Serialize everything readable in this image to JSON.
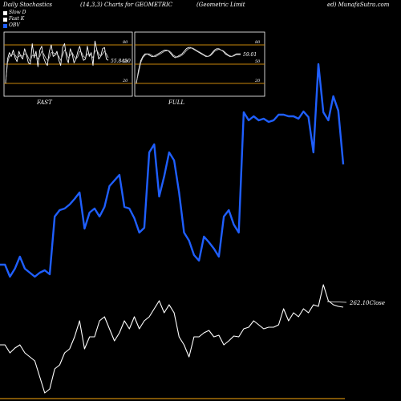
{
  "header": {
    "left": "Daily Stochastics",
    "mid1": "(14,3,3) Charts for GEOMETRIC",
    "mid2": "(Geometric Limit",
    "right": "ed) MunafaSutra.com"
  },
  "legend": [
    {
      "label": "Slow D",
      "color": "#ffffff"
    },
    {
      "label": "Fast K",
      "color": "#ffffff"
    },
    {
      "label": "OBV",
      "color": "#1f5fff"
    }
  ],
  "colors": {
    "obv": "#1f5fff",
    "close": "#ffffff",
    "band": "#c8860a"
  },
  "chart_data": [
    {
      "type": "line",
      "title": "FAST",
      "ylim": [
        0,
        100
      ],
      "levels": [
        80,
        50,
        20
      ],
      "level_labels": [
        "80",
        "50",
        "20"
      ],
      "last_value_label": "55.8450",
      "series": [
        {
          "values": [
            20,
            58,
            68,
            62,
            72,
            60,
            54,
            70,
            62,
            58,
            74,
            64,
            52,
            50,
            82,
            60,
            70,
            46,
            72,
            78,
            60,
            52,
            48,
            70,
            80,
            62,
            64,
            70,
            56,
            48,
            76,
            82,
            60,
            52,
            74,
            66,
            52,
            58,
            70,
            78,
            64,
            56,
            58,
            78,
            62,
            68,
            48,
            86,
            72,
            58,
            62,
            74,
            76,
            58,
            56
          ]
        },
        {
          "values": [
            22,
            52,
            62,
            64,
            66,
            64,
            60,
            62,
            64,
            62,
            66,
            66,
            60,
            54,
            64,
            62,
            64,
            58,
            62,
            70,
            66,
            60,
            56,
            60,
            68,
            68,
            66,
            66,
            62,
            56,
            64,
            72,
            68,
            60,
            64,
            68,
            62,
            58,
            62,
            70,
            68,
            62,
            60,
            66,
            66,
            64,
            60,
            70,
            72,
            66,
            62,
            66,
            70,
            66,
            60
          ]
        }
      ]
    },
    {
      "type": "line",
      "title": "FULL",
      "ylim": [
        0,
        100
      ],
      "levels": [
        80,
        50,
        20
      ],
      "level_labels": [
        "80",
        "50",
        "20"
      ],
      "last_value_label": "59.01",
      "series": [
        {
          "values": [
            20,
            40,
            55,
            62,
            66,
            66,
            64,
            62,
            62,
            64,
            66,
            68,
            70,
            72,
            72,
            70,
            66,
            62,
            60,
            62,
            64,
            66,
            70,
            74,
            76,
            76,
            74,
            72,
            70,
            68,
            66,
            64,
            62,
            62,
            64,
            68,
            72,
            74,
            74,
            72,
            70,
            66,
            64,
            62,
            62,
            64,
            66,
            66,
            66
          ]
        },
        {
          "values": [
            22,
            36,
            52,
            60,
            64,
            66,
            66,
            64,
            62,
            62,
            64,
            66,
            68,
            70,
            71,
            71,
            68,
            64,
            62,
            61,
            62,
            64,
            67,
            71,
            74,
            75,
            75,
            73,
            71,
            69,
            67,
            65,
            63,
            62,
            63,
            66,
            70,
            72,
            73,
            72,
            71,
            68,
            65,
            63,
            62,
            63,
            65,
            65,
            65
          ]
        }
      ]
    },
    {
      "type": "line",
      "title": "",
      "last_value_label": "262.10",
      "last_value_suffix": "Close",
      "series": [
        {
          "name": "OBV",
          "values": [
            330,
            330,
            345,
            335,
            320,
            335,
            340,
            345,
            340,
            337,
            342,
            270,
            262,
            260,
            255,
            248,
            240,
            285,
            265,
            260,
            270,
            258,
            232,
            225,
            218,
            258,
            260,
            272,
            290,
            284,
            190,
            180,
            245,
            220,
            190,
            200,
            240,
            290,
            300,
            318,
            325,
            295,
            302,
            310,
            320,
            270,
            262,
            280,
            290,
            140,
            150,
            145,
            150,
            148,
            152,
            150,
            143,
            143,
            145,
            145,
            148,
            139,
            146,
            190,
            80,
            140,
            150,
            120,
            138,
            205
          ]
        },
        {
          "name": "Close",
          "values": [
            430,
            430,
            440,
            434,
            430,
            440,
            445,
            450,
            470,
            490,
            485,
            460,
            455,
            440,
            435,
            420,
            400,
            435,
            420,
            420,
            400,
            395,
            410,
            425,
            415,
            400,
            410,
            395,
            410,
            400,
            395,
            385,
            375,
            390,
            380,
            390,
            420,
            430,
            445,
            420,
            420,
            415,
            412,
            420,
            418,
            430,
            425,
            419,
            420,
            410,
            408,
            400,
            405,
            410,
            408,
            408,
            405,
            385,
            400,
            390,
            395,
            385,
            390,
            380,
            382,
            355,
            375,
            380,
            382,
            383
          ]
        }
      ]
    }
  ]
}
